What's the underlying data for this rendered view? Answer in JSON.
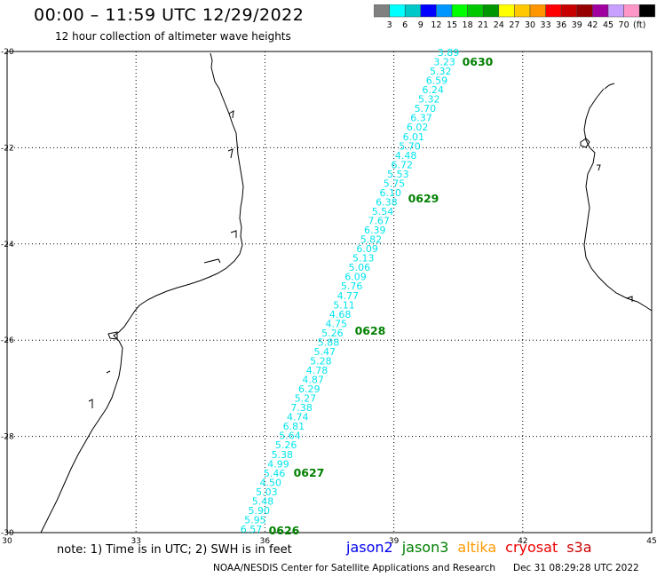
{
  "title": "00:00 – 11:59 UTC 12/29/2022",
  "subtitle": "12 hour collection of altimeter wave heights",
  "legend": {
    "colors": [
      "#808080",
      "#00ffff",
      "#00c8c8",
      "#0000ff",
      "#0096ff",
      "#00ff00",
      "#00c800",
      "#009600",
      "#ffff00",
      "#ffc800",
      "#ff9600",
      "#ff0000",
      "#c80000",
      "#960000",
      "#a000a0",
      "#c8a0ff",
      "#ff96c8",
      "#000000"
    ],
    "labels": [
      "3",
      "6",
      "9",
      "12",
      "15",
      "18",
      "21",
      "24",
      "27",
      "30",
      "33",
      "36",
      "39",
      "42",
      "45",
      "70",
      "(ft)"
    ]
  },
  "map": {
    "lon_ticks": [
      "30",
      "33",
      "36",
      "39",
      "42",
      "45"
    ],
    "lat_ticks": [
      "-20",
      "-22",
      "-24",
      "-26",
      "-28",
      "-30"
    ],
    "track_color": "#00e5ee",
    "time_color": "#008000",
    "wave_heights": [
      "3.89",
      "3.23",
      "5.32",
      "6.59",
      "6.24",
      "5.32",
      "5.70",
      "6.37",
      "6.02",
      "6.01",
      "5.70",
      "4.48",
      "6.72",
      "5.53",
      "5.75",
      "6.10",
      "6.38",
      "5.54",
      "7.67",
      "6.39",
      "5.82",
      "6.09",
      "5.13",
      "5.06",
      "6.09",
      "5.76",
      "4.77",
      "5.11",
      "4.68",
      "4.75",
      "5.26",
      "5.88",
      "5.47",
      "5.28",
      "4.78",
      "4.87",
      "6.29",
      "5.27",
      "7.38",
      "4.74",
      "6.81",
      "5.64",
      "5.26",
      "5.38",
      "4.99",
      "5.46",
      "4.50",
      "5.03",
      "5.48",
      "5.90",
      "5.95",
      "6.57"
    ],
    "time_labels": [
      "0630",
      "0629",
      "0628",
      "0627",
      "0626"
    ]
  },
  "note": "note: 1) Time is in UTC; 2) SWH is in feet",
  "satellites": [
    {
      "name": "jason2",
      "color": "#0000ee"
    },
    {
      "name": "jason3",
      "color": "#008000"
    },
    {
      "name": "altika",
      "color": "#ff9900"
    },
    {
      "name": "cryosat",
      "color": "#ee0000"
    },
    {
      "name": "s3a",
      "color": "#cc0000"
    }
  ],
  "footer": {
    "credit": "NOAA/NESDIS Center for Satellite Applications and Research",
    "timestamp": "Dec 31 08:29:28 UTC 2022"
  }
}
